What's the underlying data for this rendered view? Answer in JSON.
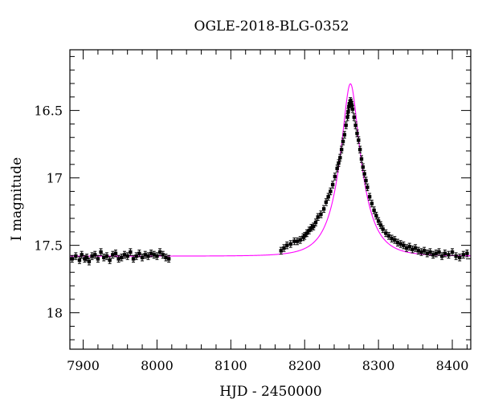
{
  "chart_data": {
    "type": "scatter",
    "title": "OGLE-2018-BLG-0352",
    "xlabel": "HJD - 2450000",
    "ylabel": "I magnitude",
    "xlim": [
      7882,
      8425
    ],
    "ylim": [
      18.27,
      16.05
    ],
    "y_inverted": true,
    "x_ticks": [
      7900,
      8000,
      8100,
      8200,
      8300,
      8400
    ],
    "y_ticks": [
      16.5,
      17,
      17.5,
      18
    ],
    "y_tick_labels": [
      "16.5",
      "17",
      "17.5",
      "18"
    ],
    "grid": false,
    "colors": {
      "points": "#000000",
      "model": "#ff00ff",
      "axes": "#000000"
    },
    "series": [
      {
        "kind": "points_with_error_bars",
        "x": [
          7885,
          7890,
          7895,
          7898,
          7902,
          7905,
          7908,
          7912,
          7916,
          7920,
          7924,
          7928,
          7932,
          7936,
          7940,
          7944,
          7948,
          7952,
          7956,
          7960,
          7964,
          7968,
          7972,
          7976,
          7980,
          7984,
          7988,
          7992,
          7996,
          8000,
          8004,
          8008,
          8012,
          8016,
          8168,
          8172,
          8176,
          8181,
          8186,
          8190,
          8194,
          8198,
          8200,
          8203,
          8206,
          8209,
          8212,
          8215,
          8218,
          8222,
          8226,
          8229,
          8232,
          8235,
          8238,
          8241,
          8244,
          8246,
          8248,
          8250,
          8252,
          8254,
          8256,
          8258,
          8259,
          8260,
          8261,
          8262,
          8263,
          8264,
          8265,
          8267,
          8269,
          8271,
          8273,
          8275,
          8277,
          8279,
          8281,
          8283,
          8285,
          8288,
          8291,
          8294,
          8297,
          8300,
          8303,
          8306,
          8310,
          8314,
          8318,
          8322,
          8326,
          8330,
          8334,
          8338,
          8342,
          8346,
          8350,
          8354,
          8358,
          8362,
          8366,
          8370,
          8374,
          8378,
          8382,
          8386,
          8390,
          8395,
          8400,
          8405,
          8410,
          8415,
          8420
        ],
        "y": [
          17.6,
          17.58,
          17.61,
          17.57,
          17.6,
          17.59,
          17.62,
          17.58,
          17.57,
          17.6,
          17.55,
          17.59,
          17.58,
          17.61,
          17.57,
          17.56,
          17.6,
          17.59,
          17.57,
          17.58,
          17.55,
          17.6,
          17.58,
          17.56,
          17.59,
          17.57,
          17.58,
          17.56,
          17.57,
          17.58,
          17.55,
          17.57,
          17.59,
          17.6,
          17.54,
          17.52,
          17.5,
          17.49,
          17.47,
          17.47,
          17.46,
          17.44,
          17.43,
          17.41,
          17.39,
          17.37,
          17.36,
          17.33,
          17.29,
          17.27,
          17.23,
          17.18,
          17.14,
          17.1,
          17.05,
          16.99,
          16.93,
          16.89,
          16.85,
          16.79,
          16.73,
          16.68,
          16.61,
          16.55,
          16.51,
          16.47,
          16.45,
          16.43,
          16.44,
          16.46,
          16.49,
          16.55,
          16.61,
          16.67,
          16.72,
          16.79,
          16.86,
          16.92,
          16.97,
          17.02,
          17.07,
          17.14,
          17.19,
          17.24,
          17.28,
          17.32,
          17.35,
          17.38,
          17.41,
          17.43,
          17.45,
          17.46,
          17.48,
          17.49,
          17.5,
          17.52,
          17.51,
          17.53,
          17.52,
          17.54,
          17.55,
          17.54,
          17.56,
          17.55,
          17.57,
          17.56,
          17.55,
          17.58,
          17.56,
          17.57,
          17.55,
          17.58,
          17.59,
          17.57,
          17.56
        ],
        "error": 0.025
      },
      {
        "kind": "model_curve",
        "model": {
          "t0": 8262,
          "u0": 0.32,
          "tE": 30,
          "I_source": 17.58
        }
      }
    ]
  }
}
